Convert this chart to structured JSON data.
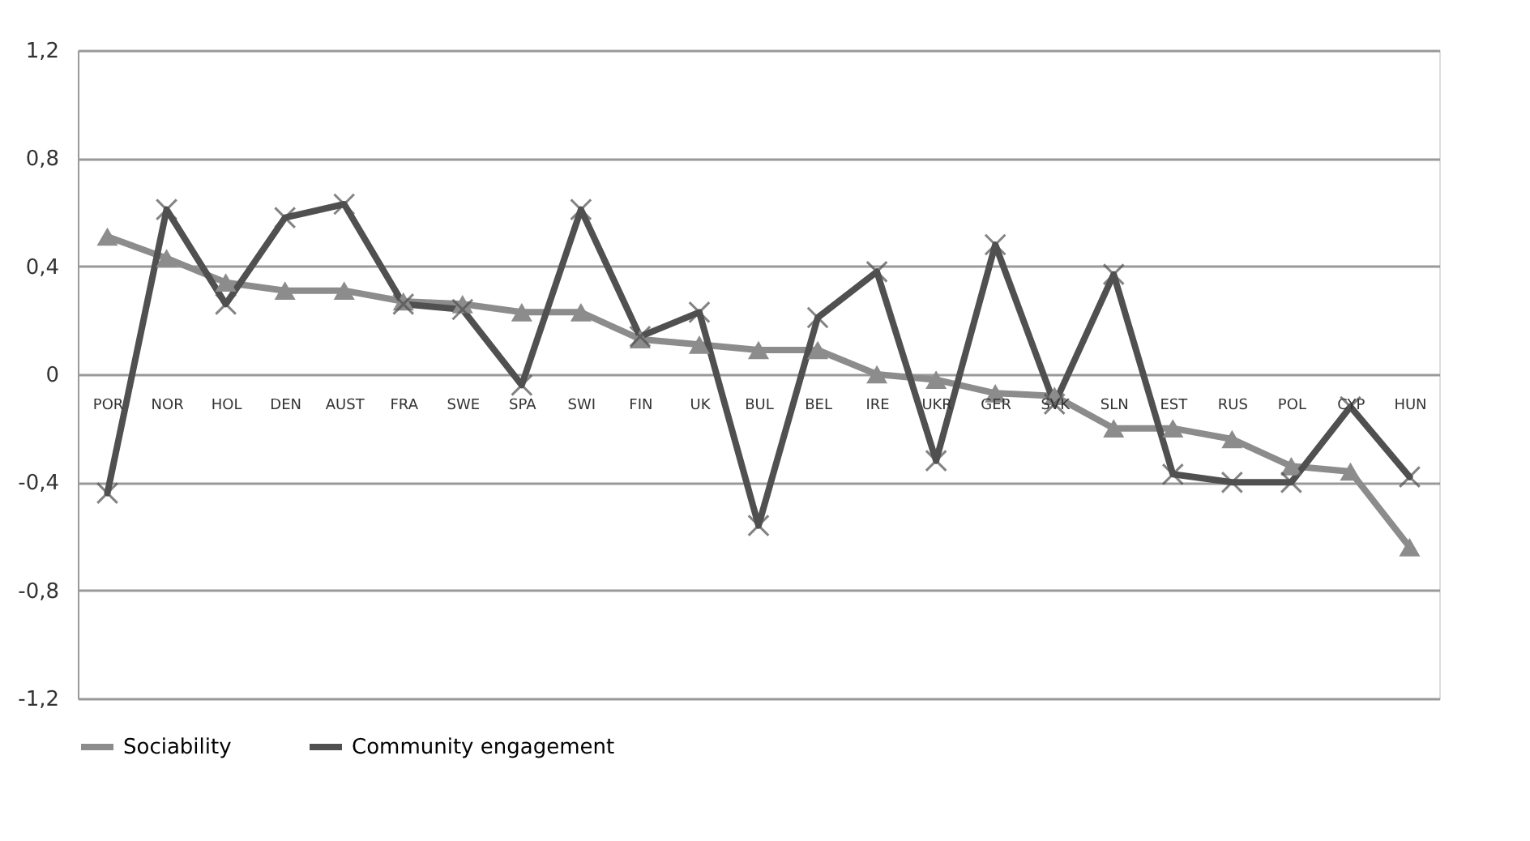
{
  "chart_data": {
    "type": "line",
    "categories": [
      "POR",
      "NOR",
      "HOL",
      "DEN",
      "AUST",
      "FRA",
      "SWE",
      "SPA",
      "SWI",
      "FIN",
      "UK",
      "BUL",
      "BEL",
      "IRE",
      "UKR",
      "GER",
      "SVK",
      "SLN",
      "EST",
      "RUS",
      "POL",
      "CYP",
      "HUN"
    ],
    "series": [
      {
        "name": "Sociability",
        "color": "#8c8c8c",
        "marker": "triangle",
        "values": [
          0.51,
          0.43,
          0.34,
          0.31,
          0.31,
          0.27,
          0.26,
          0.23,
          0.23,
          0.13,
          0.11,
          0.09,
          0.09,
          0.0,
          -0.02,
          -0.07,
          -0.08,
          -0.2,
          -0.2,
          -0.24,
          -0.34,
          -0.36,
          -0.64
        ]
      },
      {
        "name": "Community engagement",
        "color": "#505050",
        "marker": "cross",
        "values": [
          -0.44,
          0.61,
          0.26,
          0.58,
          0.63,
          0.26,
          0.24,
          -0.04,
          0.61,
          0.14,
          0.23,
          -0.56,
          0.21,
          0.38,
          -0.32,
          0.48,
          -0.11,
          0.37,
          -0.37,
          -0.4,
          -0.4,
          -0.12,
          -0.38
        ]
      }
    ],
    "ylim": [
      -1.2,
      1.2
    ],
    "yticks": [
      {
        "value": -1.2,
        "label": "-1,2"
      },
      {
        "value": -0.8,
        "label": "-0,8"
      },
      {
        "value": -0.4,
        "label": "-0,4"
      },
      0,
      {
        "value": 0.4,
        "label": "0,4"
      },
      {
        "value": 0.8,
        "label": "0,8"
      },
      {
        "value": 1.2,
        "label": "1,2"
      }
    ],
    "grid": "y",
    "legend": "bottom",
    "line_style": "solid"
  }
}
